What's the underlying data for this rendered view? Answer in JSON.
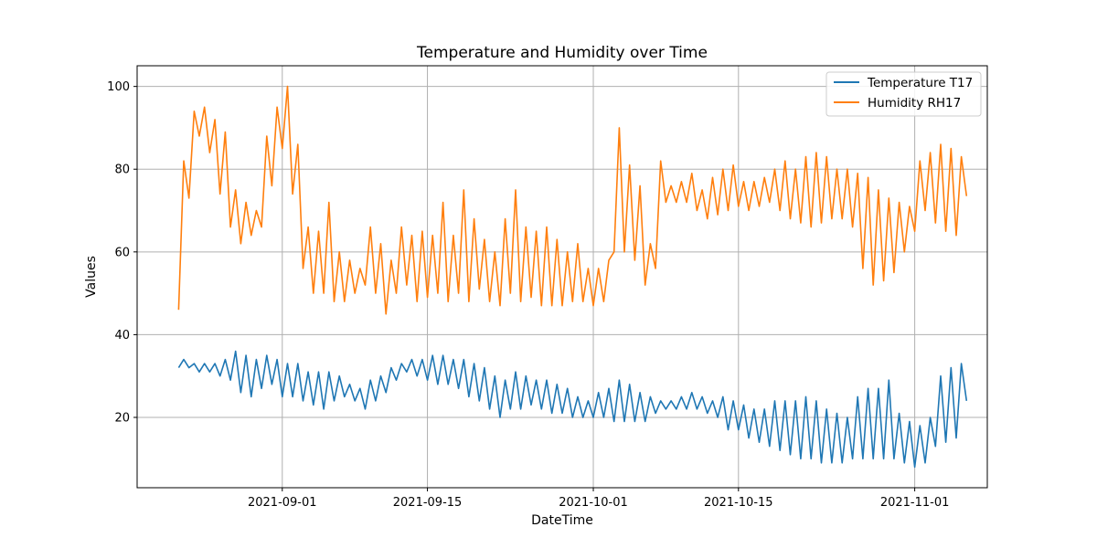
{
  "chart_data": {
    "type": "line",
    "title": "Temperature and Humidity over Time",
    "xlabel": "DateTime",
    "ylabel": "Values",
    "xlim": [
      "2021-08-18",
      "2021-11-08"
    ],
    "ylim": [
      3,
      105
    ],
    "x_ticks": [
      {
        "date": "2021-09-01",
        "label": "2021-09-01"
      },
      {
        "date": "2021-09-15",
        "label": "2021-09-15"
      },
      {
        "date": "2021-10-01",
        "label": "2021-10-01"
      },
      {
        "date": "2021-10-15",
        "label": "2021-10-15"
      },
      {
        "date": "2021-11-01",
        "label": "2021-11-01"
      }
    ],
    "y_ticks": [
      20,
      40,
      60,
      80,
      100
    ],
    "grid": true,
    "legend_position": "top-right",
    "series": [
      {
        "name": "Temperature T17",
        "color": "#1f77b4",
        "x": [
          "2021-08-22",
          "2021-08-23",
          "2021-08-24",
          "2021-08-25",
          "2021-08-26",
          "2021-08-27",
          "2021-08-28",
          "2021-08-29",
          "2021-08-30",
          "2021-08-31",
          "2021-09-01",
          "2021-09-02",
          "2021-09-03",
          "2021-09-04",
          "2021-09-05",
          "2021-09-06",
          "2021-09-07",
          "2021-09-08",
          "2021-09-09",
          "2021-09-10",
          "2021-09-11",
          "2021-09-12",
          "2021-09-13",
          "2021-09-14",
          "2021-09-15",
          "2021-09-16",
          "2021-09-17",
          "2021-09-18",
          "2021-09-19",
          "2021-09-20",
          "2021-09-21",
          "2021-09-22",
          "2021-09-23",
          "2021-09-24",
          "2021-09-25",
          "2021-09-26",
          "2021-09-27",
          "2021-09-28",
          "2021-09-29",
          "2021-09-30",
          "2021-10-01",
          "2021-10-02",
          "2021-10-03",
          "2021-10-04",
          "2021-10-05",
          "2021-10-06",
          "2021-10-07",
          "2021-10-08",
          "2021-10-09",
          "2021-10-10",
          "2021-10-11",
          "2021-10-12",
          "2021-10-13",
          "2021-10-14",
          "2021-10-15",
          "2021-10-16",
          "2021-10-17",
          "2021-10-18",
          "2021-10-19",
          "2021-10-20",
          "2021-10-21",
          "2021-10-22",
          "2021-10-23",
          "2021-10-24",
          "2021-10-25",
          "2021-10-26",
          "2021-10-27",
          "2021-10-28",
          "2021-10-29",
          "2021-10-30",
          "2021-10-31",
          "2021-11-01",
          "2021-11-02",
          "2021-11-03",
          "2021-11-04",
          "2021-11-05"
        ],
        "high": [
          34,
          33,
          33,
          33,
          34,
          36,
          35,
          34,
          35,
          34,
          33,
          33,
          31,
          31,
          31,
          30,
          28,
          27,
          29,
          30,
          32,
          33,
          34,
          34,
          35,
          35,
          34,
          34,
          33,
          32,
          30,
          29,
          31,
          30,
          29,
          29,
          28,
          27,
          25,
          24,
          26,
          27,
          29,
          28,
          26,
          25,
          24,
          24,
          25,
          26,
          25,
          24,
          25,
          24,
          23,
          22,
          22,
          24,
          24,
          24,
          25,
          24,
          22,
          21,
          20,
          25,
          27,
          27,
          29,
          21,
          19,
          18,
          20,
          30,
          32,
          33
        ],
        "low": [
          32,
          32,
          31,
          31,
          30,
          29,
          26,
          25,
          27,
          28,
          25,
          25,
          24,
          23,
          22,
          24,
          25,
          24,
          22,
          24,
          26,
          29,
          31,
          30,
          29,
          28,
          28,
          27,
          25,
          24,
          22,
          20,
          22,
          22,
          23,
          22,
          21,
          21,
          20,
          20,
          20,
          20,
          19,
          19,
          19,
          19,
          21,
          22,
          22,
          22,
          22,
          21,
          20,
          17,
          17,
          15,
          14,
          13,
          12,
          11,
          10,
          10,
          9,
          9,
          9,
          10,
          10,
          10,
          10,
          10,
          9,
          8,
          9,
          13,
          14,
          15
        ]
      },
      {
        "name": "Humidity RH17",
        "color": "#ff7f0e",
        "x": [
          "2021-08-22",
          "2021-08-23",
          "2021-08-24",
          "2021-08-25",
          "2021-08-26",
          "2021-08-27",
          "2021-08-28",
          "2021-08-29",
          "2021-08-30",
          "2021-08-31",
          "2021-09-01",
          "2021-09-02",
          "2021-09-03",
          "2021-09-04",
          "2021-09-05",
          "2021-09-06",
          "2021-09-07",
          "2021-09-08",
          "2021-09-09",
          "2021-09-10",
          "2021-09-11",
          "2021-09-12",
          "2021-09-13",
          "2021-09-14",
          "2021-09-15",
          "2021-09-16",
          "2021-09-17",
          "2021-09-18",
          "2021-09-19",
          "2021-09-20",
          "2021-09-21",
          "2021-09-22",
          "2021-09-23",
          "2021-09-24",
          "2021-09-25",
          "2021-09-26",
          "2021-09-27",
          "2021-09-28",
          "2021-09-29",
          "2021-09-30",
          "2021-10-01",
          "2021-10-02",
          "2021-10-03",
          "2021-10-04",
          "2021-10-05",
          "2021-10-06",
          "2021-10-07",
          "2021-10-08",
          "2021-10-09",
          "2021-10-10",
          "2021-10-11",
          "2021-10-12",
          "2021-10-13",
          "2021-10-14",
          "2021-10-15",
          "2021-10-16",
          "2021-10-17",
          "2021-10-18",
          "2021-10-19",
          "2021-10-20",
          "2021-10-21",
          "2021-10-22",
          "2021-10-23",
          "2021-10-24",
          "2021-10-25",
          "2021-10-26",
          "2021-10-27",
          "2021-10-28",
          "2021-10-29",
          "2021-10-30",
          "2021-10-31",
          "2021-11-01",
          "2021-11-02",
          "2021-11-03",
          "2021-11-04",
          "2021-11-05"
        ],
        "high": [
          82,
          94,
          95,
          92,
          89,
          75,
          72,
          70,
          88,
          95,
          100,
          86,
          66,
          65,
          72,
          60,
          58,
          56,
          66,
          62,
          58,
          66,
          64,
          65,
          64,
          72,
          64,
          75,
          68,
          63,
          60,
          68,
          75,
          66,
          65,
          66,
          63,
          60,
          62,
          56,
          56,
          58,
          90,
          81,
          76,
          62,
          82,
          76,
          77,
          79,
          75,
          78,
          80,
          81,
          77,
          77,
          78,
          80,
          82,
          80,
          83,
          84,
          83,
          80,
          80,
          79,
          78,
          75,
          73,
          72,
          71,
          82,
          84,
          86,
          85,
          83
        ],
        "low": [
          46,
          73,
          88,
          84,
          74,
          66,
          62,
          64,
          66,
          76,
          85,
          74,
          56,
          50,
          50,
          48,
          48,
          50,
          52,
          50,
          45,
          50,
          52,
          48,
          49,
          50,
          48,
          50,
          48,
          51,
          48,
          47,
          50,
          48,
          49,
          47,
          47,
          47,
          48,
          48,
          47,
          48,
          60,
          60,
          58,
          52,
          56,
          72,
          72,
          72,
          70,
          68,
          69,
          70,
          71,
          70,
          71,
          72,
          70,
          68,
          67,
          66,
          67,
          68,
          68,
          66,
          56,
          52,
          53,
          55,
          60,
          65,
          70,
          67,
          65,
          64
        ]
      }
    ]
  }
}
